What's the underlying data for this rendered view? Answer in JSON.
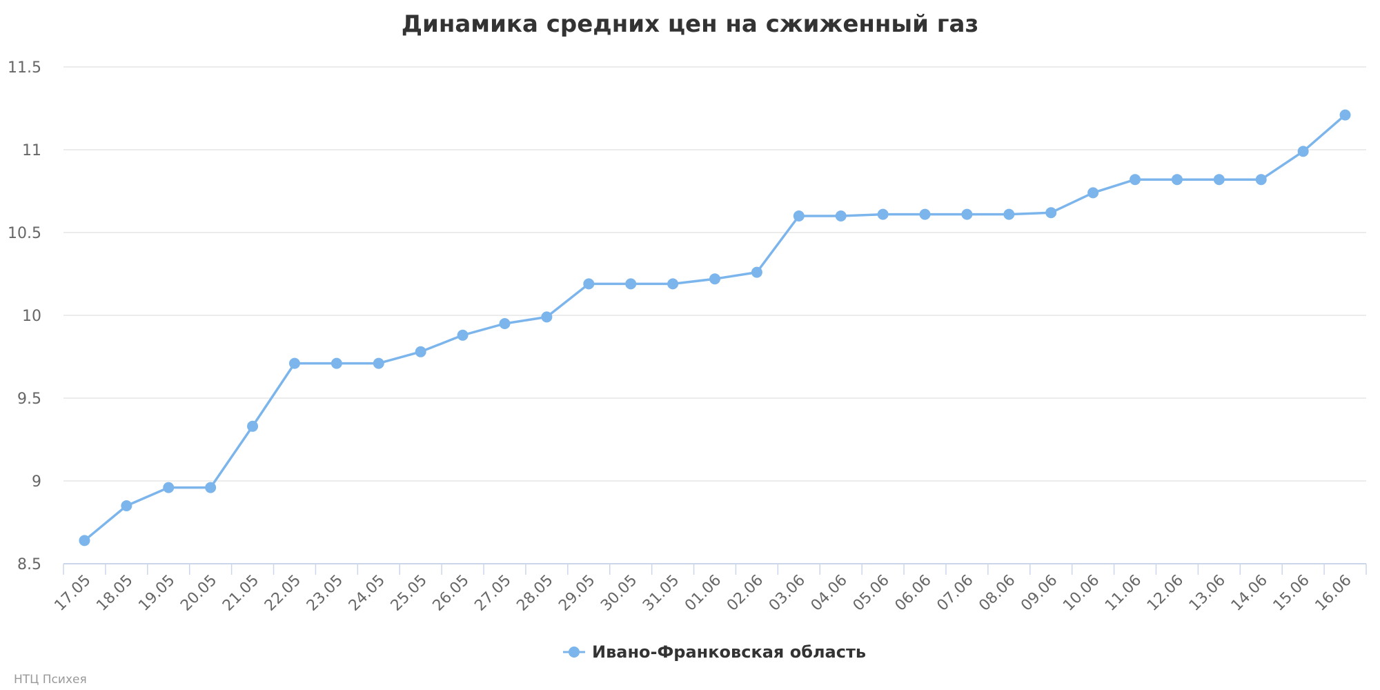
{
  "chart_data": {
    "type": "line",
    "title": "Динамика средних цен на сжиженный газ",
    "xlabel": "",
    "ylabel": "",
    "ylim": [
      8.5,
      11.5
    ],
    "ytick_labels": [
      "8.5",
      "9",
      "9.5",
      "10",
      "10.5",
      "11",
      "11.5"
    ],
    "grid": true,
    "legend_position": "bottom-center",
    "categories": [
      "17.05",
      "18.05",
      "19.05",
      "20.05",
      "21.05",
      "22.05",
      "23.05",
      "24.05",
      "25.05",
      "26.05",
      "27.05",
      "28.05",
      "29.05",
      "30.05",
      "31.05",
      "01.06",
      "02.06",
      "03.06",
      "04.06",
      "05.06",
      "06.06",
      "07.06",
      "08.06",
      "09.06",
      "10.06",
      "11.06",
      "12.06",
      "13.06",
      "14.06",
      "15.06",
      "16.06"
    ],
    "series": [
      {
        "name": "Ивано-Франковская область",
        "color": "#7cb5ec",
        "values": [
          8.64,
          8.85,
          8.96,
          8.96,
          9.33,
          9.71,
          9.71,
          9.71,
          9.78,
          9.88,
          9.95,
          9.99,
          10.19,
          10.19,
          10.19,
          10.22,
          10.26,
          10.6,
          10.6,
          10.61,
          10.61,
          10.61,
          10.61,
          10.62,
          10.74,
          10.82,
          10.82,
          10.82,
          10.82,
          10.99,
          11.21
        ]
      }
    ]
  },
  "credits": "НТЦ Психея",
  "colors": {
    "grid": "#e6e6e6",
    "axis": "#ccd6eb",
    "line": "#7cb5ec"
  }
}
